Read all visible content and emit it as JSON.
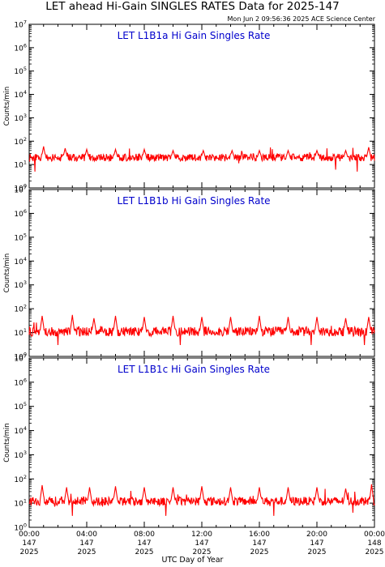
{
  "title": "LET ahead Hi-Gain SINGLES RATES Data for 2025-147",
  "timestamp": "Mon Jun  2 09:56:36 2025 ACE Science Center",
  "x_axis_label": "UTC Day of Year",
  "colors": {
    "series": "#ff0000",
    "panel_title": "#0000cc",
    "axis": "#000000"
  },
  "chart_data": [
    {
      "type": "line",
      "title": "LET L1B1a Hi Gain Singles Rate",
      "ylabel": "Counts/min",
      "yscale": "log",
      "ylim": [
        1,
        10000000
      ],
      "ytick_exponents": [
        "0",
        "1",
        "2",
        "3",
        "4",
        "5",
        "6",
        "7"
      ],
      "xlim_hours": [
        0,
        24
      ],
      "baseline": 20,
      "noise_decades": 0.16,
      "spikes": [
        {
          "hour": 1.0,
          "value": 60
        },
        {
          "hour": 2.5,
          "value": 50
        },
        {
          "hour": 4.0,
          "value": 45
        },
        {
          "hour": 6.0,
          "value": 45
        },
        {
          "hour": 8.0,
          "value": 45
        },
        {
          "hour": 10.0,
          "value": 40
        },
        {
          "hour": 12.1,
          "value": 40
        },
        {
          "hour": 14.1,
          "value": 40
        },
        {
          "hour": 16.0,
          "value": 40
        },
        {
          "hour": 18.0,
          "value": 40
        },
        {
          "hour": 20.0,
          "value": 40
        },
        {
          "hour": 22.0,
          "value": 40
        },
        {
          "hour": 23.6,
          "value": 55
        }
      ],
      "dips": [
        {
          "hour": 0.4,
          "value": 5
        },
        {
          "hour": 21.3,
          "value": 6
        },
        {
          "hour": 22.8,
          "value": 5
        }
      ]
    },
    {
      "type": "line",
      "title": "LET L1B1b Hi Gain Singles Rate",
      "ylabel": "Counts/min",
      "yscale": "log",
      "ylim": [
        1,
        10000000
      ],
      "ytick_exponents": [
        "0",
        "1",
        "2",
        "3",
        "4",
        "5",
        "6",
        "7"
      ],
      "xlim_hours": [
        0,
        24
      ],
      "baseline": 11,
      "noise_decades": 0.2,
      "spikes": [
        {
          "hour": 0.9,
          "value": 50
        },
        {
          "hour": 3.0,
          "value": 55
        },
        {
          "hour": 4.5,
          "value": 40
        },
        {
          "hour": 6.0,
          "value": 50
        },
        {
          "hour": 8.0,
          "value": 45
        },
        {
          "hour": 10.0,
          "value": 50
        },
        {
          "hour": 12.0,
          "value": 45
        },
        {
          "hour": 14.0,
          "value": 45
        },
        {
          "hour": 16.0,
          "value": 50
        },
        {
          "hour": 18.0,
          "value": 45
        },
        {
          "hour": 20.0,
          "value": 45
        },
        {
          "hour": 22.0,
          "value": 40
        },
        {
          "hour": 23.6,
          "value": 45
        }
      ],
      "dips": [
        {
          "hour": 2.0,
          "value": 3
        },
        {
          "hour": 10.5,
          "value": 3
        },
        {
          "hour": 19.6,
          "value": 3
        },
        {
          "hour": 23.3,
          "value": 3
        }
      ]
    },
    {
      "type": "line",
      "title": "LET L1B1c Hi Gain Singles Rate",
      "ylabel": "Counts/min",
      "yscale": "log",
      "ylim": [
        1,
        10000000
      ],
      "ytick_exponents": [
        "0",
        "1",
        "2",
        "3",
        "4",
        "5",
        "6",
        "7"
      ],
      "xlim_hours": [
        0,
        24
      ],
      "baseline": 12,
      "noise_decades": 0.18,
      "spikes": [
        {
          "hour": 0.9,
          "value": 55
        },
        {
          "hour": 2.6,
          "value": 45
        },
        {
          "hour": 4.2,
          "value": 45
        },
        {
          "hour": 6.0,
          "value": 50
        },
        {
          "hour": 8.0,
          "value": 45
        },
        {
          "hour": 10.0,
          "value": 45
        },
        {
          "hour": 12.0,
          "value": 50
        },
        {
          "hour": 14.0,
          "value": 45
        },
        {
          "hour": 16.0,
          "value": 45
        },
        {
          "hour": 18.0,
          "value": 45
        },
        {
          "hour": 20.0,
          "value": 45
        },
        {
          "hour": 22.0,
          "value": 40
        },
        {
          "hour": 23.8,
          "value": 60
        }
      ],
      "dips": [
        {
          "hour": 3.0,
          "value": 3
        },
        {
          "hour": 9.5,
          "value": 3
        },
        {
          "hour": 17.0,
          "value": 3
        },
        {
          "hour": 22.5,
          "value": 4
        }
      ]
    }
  ],
  "x_ticks": [
    {
      "hour": 0,
      "time": "00:00",
      "doy": "147",
      "year": "2025"
    },
    {
      "hour": 4,
      "time": "04:00",
      "doy": "147",
      "year": "2025"
    },
    {
      "hour": 8,
      "time": "08:00",
      "doy": "147",
      "year": "2025"
    },
    {
      "hour": 12,
      "time": "12:00",
      "doy": "147",
      "year": "2025"
    },
    {
      "hour": 16,
      "time": "16:00",
      "doy": "147",
      "year": "2025"
    },
    {
      "hour": 20,
      "time": "20:00",
      "doy": "147",
      "year": "2025"
    },
    {
      "hour": 24,
      "time": "00:00",
      "doy": "148",
      "year": "2025"
    }
  ]
}
